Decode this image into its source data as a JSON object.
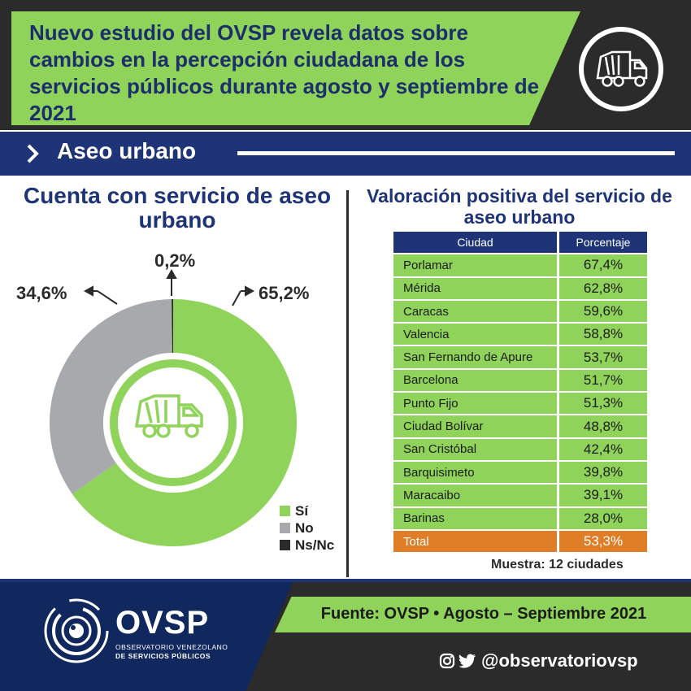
{
  "header": {
    "title": "Nuevo estudio del OVSP revela datos sobre cambios en la percepción ciudadana de los servicios públicos durante agosto y septiembre de 2021",
    "icon": "garbage-truck-icon"
  },
  "section": {
    "title": "Aseo urbano"
  },
  "colors": {
    "green": "#8fd35a",
    "navy": "#1e3477",
    "gray": "#a7a9ad",
    "dark": "#2b2b2b",
    "orange": "#e07e28"
  },
  "chart_data": [
    {
      "type": "pie",
      "variant": "donut",
      "title": "Cuenta con servicio de aseo urbano",
      "slices": [
        {
          "name": "Sí",
          "value": 65.2,
          "label": "65,2%",
          "color": "#8fd35a"
        },
        {
          "name": "No",
          "value": 34.6,
          "label": "34,6%",
          "color": "#a7a9ad"
        },
        {
          "name": "Ns/Nc",
          "value": 0.2,
          "label": "0,2%",
          "color": "#2b2b2b"
        }
      ],
      "legend": [
        "Sí",
        "No",
        "Ns/Nc"
      ],
      "legend_placement": "bottom-right"
    },
    {
      "type": "table",
      "title": "Valoración positiva del servicio de aseo urbano",
      "columns": [
        "Ciudad",
        "Porcentaje"
      ],
      "rows": [
        {
          "city": "Porlamar",
          "value": 67.4,
          "label": "67,4%"
        },
        {
          "city": "Mérida",
          "value": 62.8,
          "label": "62,8%"
        },
        {
          "city": "Caracas",
          "value": 59.6,
          "label": "59,6%"
        },
        {
          "city": "Valencia",
          "value": 58.8,
          "label": "58,8%"
        },
        {
          "city": "San Fernando de Apure",
          "value": 53.7,
          "label": "53,7%"
        },
        {
          "city": "Barcelona",
          "value": 51.7,
          "label": "51,7%"
        },
        {
          "city": "Punto Fijo",
          "value": 51.3,
          "label": "51,3%"
        },
        {
          "city": "Ciudad Bolívar",
          "value": 48.8,
          "label": "48,8%"
        },
        {
          "city": "San Cristóbal",
          "value": 42.4,
          "label": "42,4%"
        },
        {
          "city": "Barquisimeto",
          "value": 39.8,
          "label": "39,8%"
        },
        {
          "city": "Maracaibo",
          "value": 39.1,
          "label": "39,1%"
        },
        {
          "city": "Barinas",
          "value": 28.0,
          "label": "28,0%"
        }
      ],
      "total": {
        "city": "Total",
        "value": 53.3,
        "label": "53,3%"
      },
      "note": "Muestra: 12 ciudades"
    }
  ],
  "footer": {
    "brand": "OVSP",
    "brand_line1": "OBSERVATORIO VENEZOLANO",
    "brand_line2": "DE SERVICIOS PÚBLICOS",
    "source": "Fuente: OVSP • Agosto – Septiembre 2021",
    "social_handle": "@observatoriovsp",
    "social_icons": [
      "instagram-icon",
      "twitter-icon"
    ]
  }
}
